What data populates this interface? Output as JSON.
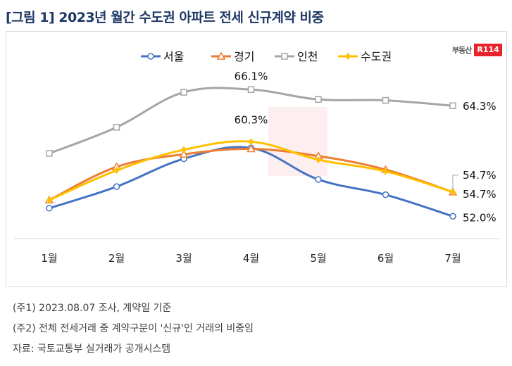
{
  "title": "[그림 1] 2023년 월간 수도권 아파트 전세 신규계약 비중",
  "logo": {
    "text": "부동산",
    "badge": "R114"
  },
  "notes": [
    "(주1) 2023.08.07 조사, 계약일 기준",
    "(주2) 전체 전세거래 중 계약구분이 '신규'인 거래의 비중임",
    "자료: 국토교통부 실거래가 공개시스템"
  ],
  "chart_data": {
    "type": "line",
    "title": "",
    "xlabel": "",
    "ylabel": "",
    "categories": [
      "1월",
      "2월",
      "3월",
      "4월",
      "5월",
      "6월",
      "7월"
    ],
    "ylim": [
      50.3,
      68.0
    ],
    "grid": false,
    "legend_position": "top",
    "series": [
      {
        "name": "서울",
        "color": "#4472c4",
        "marker": "circle",
        "values": [
          52.9,
          55.3,
          58.4,
          59.6,
          56.1,
          54.4,
          52.0
        ]
      },
      {
        "name": "경기",
        "color": "#ed7d31",
        "marker": "triangle",
        "values": [
          53.8,
          57.5,
          58.9,
          59.5,
          58.7,
          57.2,
          54.7
        ]
      },
      {
        "name": "인천",
        "color": "#a5a5a5",
        "marker": "square",
        "values": [
          59.0,
          61.9,
          65.8,
          66.1,
          65.0,
          64.9,
          64.3
        ]
      },
      {
        "name": "수도권",
        "color": "#ffc000",
        "marker": "diamond",
        "values": [
          53.8,
          57.1,
          59.4,
          60.3,
          58.3,
          57.0,
          54.7
        ]
      }
    ],
    "annotations": [
      {
        "series": "인천",
        "category": "4월",
        "text": "66.1%"
      },
      {
        "series": "수도권",
        "category": "4월",
        "text": "60.3%"
      },
      {
        "series": "인천",
        "category": "7월",
        "text": "64.3%"
      },
      {
        "series": "경기",
        "category": "7월",
        "text": "54.7%"
      },
      {
        "series": "수도권",
        "category": "7월",
        "text": "54.7%"
      },
      {
        "series": "서울",
        "category": "7월",
        "text": "52.0%"
      }
    ]
  }
}
